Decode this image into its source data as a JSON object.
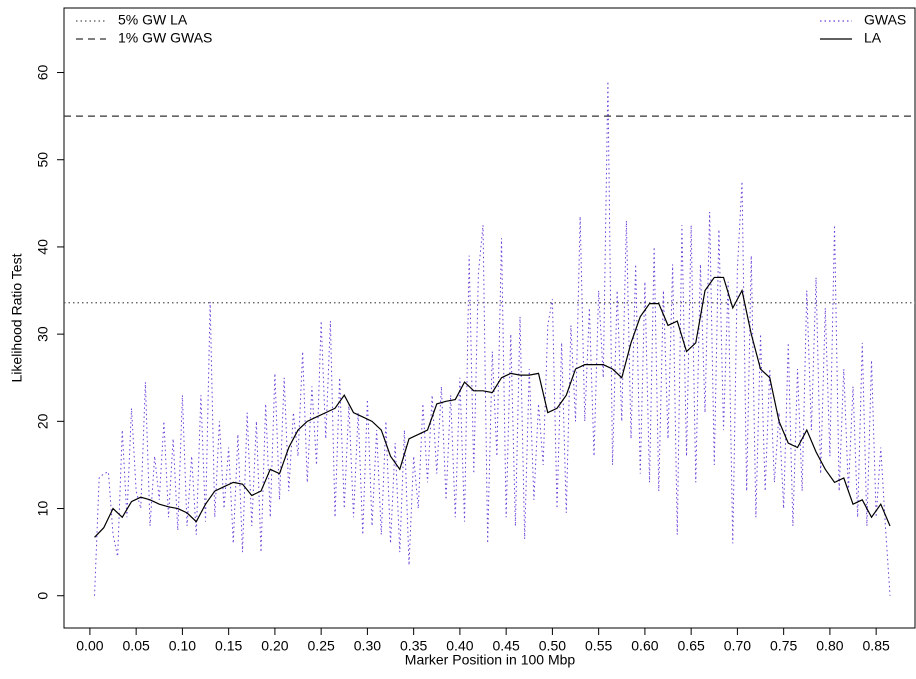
{
  "chart_data": {
    "type": "line",
    "xlabel": "Marker Position in 100 Mbp",
    "ylabel": "Likelihood Ratio Test",
    "xlim": [
      -0.028,
      0.892
    ],
    "ylim": [
      -3.7,
      67.4
    ],
    "xticks": [
      {
        "value": 0,
        "label": "0.00"
      },
      {
        "value": 0.05,
        "label": "0.05"
      },
      {
        "value": 0.1,
        "label": "0.10"
      },
      {
        "value": 0.15,
        "label": "0.15"
      },
      {
        "value": 0.2,
        "label": "0.20"
      },
      {
        "value": 0.25,
        "label": "0.25"
      },
      {
        "value": 0.3,
        "label": "0.30"
      },
      {
        "value": 0.35,
        "label": "0.35"
      },
      {
        "value": 0.4,
        "label": "0.40"
      },
      {
        "value": 0.45,
        "label": "0.45"
      },
      {
        "value": 0.5,
        "label": "0.50"
      },
      {
        "value": 0.55,
        "label": "0.55"
      },
      {
        "value": 0.6,
        "label": "0.60"
      },
      {
        "value": 0.65,
        "label": "0.65"
      },
      {
        "value": 0.7,
        "label": "0.70"
      },
      {
        "value": 0.75,
        "label": "0.75"
      },
      {
        "value": 0.8,
        "label": "0.80"
      },
      {
        "value": 0.85,
        "label": "0.85"
      }
    ],
    "yticks": [
      0,
      10,
      20,
      30,
      40,
      50,
      60
    ],
    "legend_position": "topright",
    "reference_legend_position": "topleft",
    "reference_lines": [
      {
        "name": "5% GW LA",
        "value": 33.6,
        "style": "dotted",
        "color": "#555555"
      },
      {
        "name": "1% GW GWAS",
        "value": 55,
        "style": "dashed",
        "color": "#333333"
      }
    ],
    "series": [
      {
        "name": "GWAS",
        "color": "#6a3fd8",
        "style": "dotted",
        "x": [
          0.005,
          0.01,
          0.015,
          0.02,
          0.025,
          0.03,
          0.035,
          0.04,
          0.045,
          0.05,
          0.055,
          0.06,
          0.065,
          0.07,
          0.075,
          0.08,
          0.085,
          0.09,
          0.095,
          0.1,
          0.105,
          0.11,
          0.115,
          0.12,
          0.125,
          0.13,
          0.135,
          0.14,
          0.145,
          0.15,
          0.155,
          0.16,
          0.165,
          0.17,
          0.175,
          0.18,
          0.185,
          0.19,
          0.195,
          0.2,
          0.205,
          0.21,
          0.215,
          0.22,
          0.225,
          0.23,
          0.235,
          0.24,
          0.245,
          0.25,
          0.255,
          0.26,
          0.265,
          0.27,
          0.275,
          0.28,
          0.285,
          0.29,
          0.295,
          0.3,
          0.305,
          0.31,
          0.315,
          0.32,
          0.325,
          0.33,
          0.335,
          0.34,
          0.345,
          0.35,
          0.355,
          0.36,
          0.365,
          0.37,
          0.375,
          0.38,
          0.385,
          0.39,
          0.395,
          0.4,
          0.405,
          0.41,
          0.415,
          0.42,
          0.425,
          0.43,
          0.435,
          0.44,
          0.445,
          0.45,
          0.455,
          0.46,
          0.465,
          0.47,
          0.475,
          0.48,
          0.485,
          0.49,
          0.495,
          0.5,
          0.505,
          0.51,
          0.515,
          0.52,
          0.525,
          0.53,
          0.535,
          0.54,
          0.545,
          0.55,
          0.555,
          0.56,
          0.565,
          0.57,
          0.575,
          0.58,
          0.585,
          0.59,
          0.595,
          0.6,
          0.605,
          0.61,
          0.615,
          0.62,
          0.625,
          0.63,
          0.635,
          0.64,
          0.645,
          0.65,
          0.655,
          0.66,
          0.665,
          0.67,
          0.675,
          0.68,
          0.685,
          0.69,
          0.695,
          0.7,
          0.705,
          0.71,
          0.715,
          0.72,
          0.725,
          0.73,
          0.735,
          0.74,
          0.745,
          0.75,
          0.755,
          0.76,
          0.765,
          0.77,
          0.775,
          0.78,
          0.785,
          0.79,
          0.795,
          0.8,
          0.805,
          0.81,
          0.815,
          0.82,
          0.825,
          0.83,
          0.835,
          0.84,
          0.845,
          0.85,
          0.855,
          0.86,
          0.865
        ],
        "values": [
          0,
          13.5,
          14,
          14.2,
          7,
          4.5,
          19,
          9,
          21.5,
          12,
          10,
          24.5,
          8,
          16,
          11,
          20,
          9,
          18,
          7.5,
          23,
          8,
          16,
          7,
          23,
          8.5,
          33.7,
          9,
          20,
          10,
          17,
          6,
          18.5,
          5,
          21,
          8,
          20,
          5,
          22,
          9,
          25.5,
          11,
          25,
          12,
          21,
          16,
          28,
          13,
          24,
          15,
          31.5,
          18,
          31.5,
          9,
          25,
          10,
          22,
          9,
          21,
          7,
          22.5,
          8,
          19,
          7,
          20,
          6,
          17.5,
          5,
          19,
          3.5,
          16,
          10,
          22,
          13,
          23,
          14,
          24,
          11,
          23,
          9,
          25,
          8.5,
          39,
          14,
          37,
          42.5,
          6,
          28,
          16,
          41,
          9,
          30,
          8,
          32,
          6.5,
          26,
          11,
          22,
          15,
          31,
          34,
          10,
          29,
          9.5,
          31,
          20,
          43.5,
          20,
          33,
          16,
          35,
          25,
          59,
          15,
          35,
          20,
          43,
          18,
          38,
          14,
          36,
          13,
          40,
          12,
          35,
          18,
          38,
          7,
          42.5,
          16,
          42.5,
          13,
          38,
          21,
          44,
          15,
          42,
          19,
          36,
          6,
          37.5,
          47.5,
          12,
          39,
          9,
          30,
          12,
          26,
          13,
          21,
          10,
          29,
          8,
          26,
          12,
          35,
          19,
          36.5,
          14,
          33,
          16,
          42.5,
          12,
          26,
          12,
          24,
          9,
          29,
          8,
          27,
          9,
          17,
          8,
          0
        ]
      },
      {
        "name": "LA",
        "color": "#000000",
        "style": "solid",
        "x": [
          0.005,
          0.015,
          0.025,
          0.035,
          0.045,
          0.055,
          0.065,
          0.075,
          0.085,
          0.095,
          0.105,
          0.115,
          0.125,
          0.135,
          0.145,
          0.155,
          0.165,
          0.175,
          0.185,
          0.195,
          0.205,
          0.215,
          0.225,
          0.235,
          0.245,
          0.255,
          0.265,
          0.275,
          0.285,
          0.295,
          0.305,
          0.315,
          0.325,
          0.335,
          0.345,
          0.355,
          0.365,
          0.375,
          0.385,
          0.395,
          0.405,
          0.415,
          0.425,
          0.435,
          0.445,
          0.455,
          0.465,
          0.475,
          0.485,
          0.495,
          0.505,
          0.515,
          0.525,
          0.535,
          0.545,
          0.555,
          0.565,
          0.575,
          0.585,
          0.595,
          0.605,
          0.615,
          0.625,
          0.635,
          0.645,
          0.655,
          0.665,
          0.675,
          0.685,
          0.695,
          0.705,
          0.715,
          0.725,
          0.735,
          0.745,
          0.755,
          0.765,
          0.775,
          0.785,
          0.795,
          0.805,
          0.815,
          0.825,
          0.835,
          0.845,
          0.855,
          0.865
        ],
        "values": [
          6.7,
          7.8,
          10,
          9,
          10.8,
          11.3,
          11,
          10.5,
          10.2,
          10,
          9.5,
          8.5,
          10.5,
          12,
          12.5,
          13,
          12.8,
          11.5,
          12,
          14.5,
          14,
          17,
          19,
          20,
          20.5,
          21,
          21.5,
          23,
          21,
          20.5,
          20,
          19,
          16,
          14.5,
          18,
          18.5,
          19,
          22,
          22.3,
          22.5,
          24.5,
          23.5,
          23.5,
          23.3,
          25,
          25.5,
          25.3,
          25.3,
          25.5,
          21,
          21.5,
          23,
          26,
          26.5,
          26.5,
          26.5,
          26,
          25,
          29,
          32,
          33.5,
          33.5,
          31,
          31.5,
          28,
          29,
          35,
          36.5,
          36.5,
          33,
          35,
          30,
          26,
          25,
          20,
          17.5,
          17,
          19,
          16.5,
          14.5,
          13,
          13.5,
          10.5,
          11,
          9,
          10.5,
          8
        ]
      }
    ]
  }
}
